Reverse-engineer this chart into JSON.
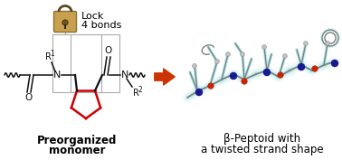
{
  "bg_color": "#ffffff",
  "arrow_color": "#cc3300",
  "lock_color": "#c8a050",
  "lock_shackle_color": "#5a4a20",
  "cyclopentane_color": "#cc0000",
  "bond_box_color": "#aaaaaa",
  "left_label_line1": "Preorganized",
  "left_label_line2": "monomer",
  "right_label_line1": "β-Peptoid with",
  "right_label_line2": "a twisted strand shape",
  "lock_text_line1": "Lock",
  "lock_text_line2": "4 bonds",
  "label_fontsize": 8.5,
  "lock_fontsize": 8,
  "fig_width": 3.78,
  "fig_height": 1.77,
  "dpi": 100
}
